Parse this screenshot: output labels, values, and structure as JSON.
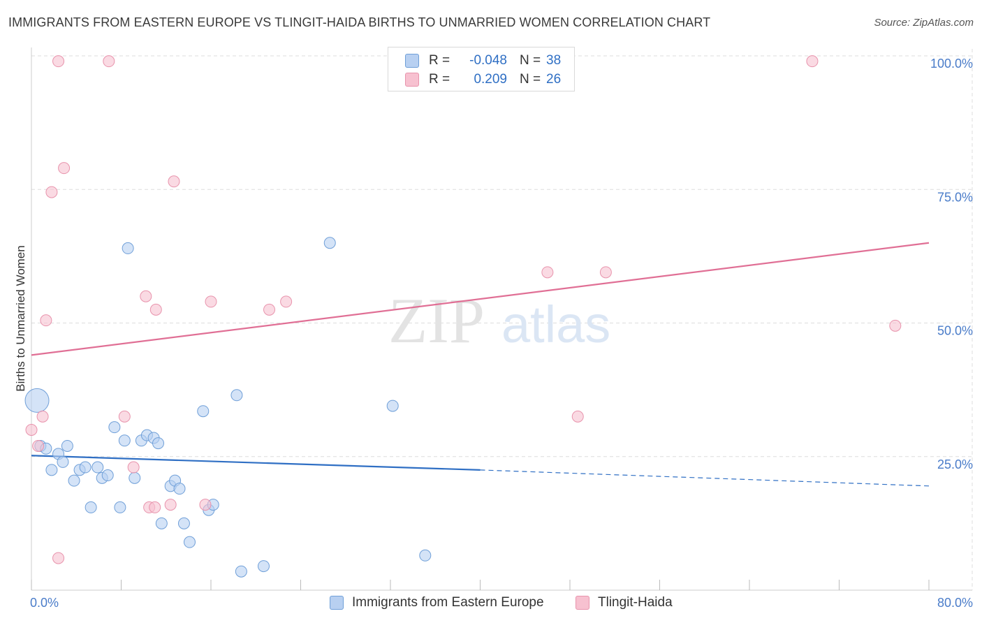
{
  "title": "IMMIGRANTS FROM EASTERN EUROPE VS TLINGIT-HAIDA BIRTHS TO UNMARRIED WOMEN CORRELATION CHART",
  "source": "Source: ZipAtlas.com",
  "watermark": {
    "zip": "ZIP",
    "atlas": "atlas"
  },
  "legend": {
    "rows": [
      {
        "r_label": "R =",
        "r_value": "-0.048",
        "n_label": "N =",
        "n_value": "38"
      },
      {
        "r_label": "R =",
        "r_value": "0.209",
        "n_label": "N =",
        "n_value": "26"
      }
    ]
  },
  "colors": {
    "blue_fill": "#b8d0f1",
    "blue_stroke": "#6f9fd8",
    "blue_line": "#2f6fc4",
    "pink_fill": "#f7c1d0",
    "pink_stroke": "#e893ac",
    "pink_line": "#e06f95",
    "grid": "#dddddd",
    "axis_text": "#4a7cc9"
  },
  "chart_data": {
    "type": "scatter",
    "title": "IMMIGRANTS FROM EASTERN EUROPE VS TLINGIT-HAIDA BIRTHS TO UNMARRIED WOMEN CORRELATION CHART",
    "xlabel": "",
    "ylabel": "Births to Unmarried Women",
    "xlim": [
      0,
      80
    ],
    "ylim": [
      0,
      102
    ],
    "x_tick_labels": [
      "0.0%",
      "80.0%"
    ],
    "y_ticks": [
      25,
      50,
      75,
      100
    ],
    "y_tick_labels": [
      "25.0%",
      "50.0%",
      "75.0%",
      "100.0%"
    ],
    "grid": true,
    "legend": [
      "Immigrants from Eastern Europe",
      "Tlingit-Haida"
    ],
    "series": [
      {
        "name": "Immigrants from Eastern Europe",
        "color": "blue",
        "points": [
          {
            "x": 0.5,
            "y": 35.5,
            "big": true
          },
          {
            "x": 0.8,
            "y": 27.0
          },
          {
            "x": 1.3,
            "y": 26.5
          },
          {
            "x": 1.8,
            "y": 22.5
          },
          {
            "x": 2.4,
            "y": 25.5
          },
          {
            "x": 2.8,
            "y": 24.0
          },
          {
            "x": 3.2,
            "y": 27.0
          },
          {
            "x": 3.8,
            "y": 20.5
          },
          {
            "x": 4.3,
            "y": 22.5
          },
          {
            "x": 4.8,
            "y": 23.0
          },
          {
            "x": 5.3,
            "y": 15.5
          },
          {
            "x": 5.9,
            "y": 23.0
          },
          {
            "x": 6.3,
            "y": 21.0
          },
          {
            "x": 6.8,
            "y": 21.5
          },
          {
            "x": 7.4,
            "y": 30.5
          },
          {
            "x": 7.9,
            "y": 15.5
          },
          {
            "x": 8.3,
            "y": 28.0
          },
          {
            "x": 8.6,
            "y": 64.0
          },
          {
            "x": 9.2,
            "y": 21.0
          },
          {
            "x": 9.8,
            "y": 28.0
          },
          {
            "x": 10.3,
            "y": 29.0
          },
          {
            "x": 10.9,
            "y": 28.5
          },
          {
            "x": 11.3,
            "y": 27.5
          },
          {
            "x": 11.6,
            "y": 12.5
          },
          {
            "x": 12.4,
            "y": 19.5
          },
          {
            "x": 12.8,
            "y": 20.5
          },
          {
            "x": 13.2,
            "y": 19.0
          },
          {
            "x": 13.6,
            "y": 12.5
          },
          {
            "x": 14.1,
            "y": 9.0
          },
          {
            "x": 15.3,
            "y": 33.5
          },
          {
            "x": 15.8,
            "y": 15.0
          },
          {
            "x": 16.2,
            "y": 16.0
          },
          {
            "x": 18.3,
            "y": 36.5
          },
          {
            "x": 18.7,
            "y": 3.5
          },
          {
            "x": 20.7,
            "y": 4.5
          },
          {
            "x": 26.6,
            "y": 65.0
          },
          {
            "x": 32.2,
            "y": 34.5
          },
          {
            "x": 35.1,
            "y": 6.5
          }
        ]
      },
      {
        "name": "Tlingit-Haida",
        "color": "pink",
        "points": [
          {
            "x": 0.0,
            "y": 30.0
          },
          {
            "x": 0.6,
            "y": 27.0
          },
          {
            "x": 1.0,
            "y": 32.5
          },
          {
            "x": 1.3,
            "y": 50.5
          },
          {
            "x": 1.8,
            "y": 74.5
          },
          {
            "x": 2.4,
            "y": 6.0
          },
          {
            "x": 2.4,
            "y": 99.0
          },
          {
            "x": 2.9,
            "y": 79.0
          },
          {
            "x": 6.9,
            "y": 99.0
          },
          {
            "x": 8.3,
            "y": 32.5
          },
          {
            "x": 9.1,
            "y": 23.0
          },
          {
            "x": 10.2,
            "y": 55.0
          },
          {
            "x": 10.5,
            "y": 15.5
          },
          {
            "x": 11.0,
            "y": 15.5
          },
          {
            "x": 11.1,
            "y": 52.5
          },
          {
            "x": 12.4,
            "y": 16.0
          },
          {
            "x": 12.7,
            "y": 76.5
          },
          {
            "x": 15.5,
            "y": 16.0
          },
          {
            "x": 16.0,
            "y": 54.0
          },
          {
            "x": 21.2,
            "y": 52.5
          },
          {
            "x": 22.7,
            "y": 54.0
          },
          {
            "x": 46.0,
            "y": 59.5
          },
          {
            "x": 48.7,
            "y": 32.5
          },
          {
            "x": 51.2,
            "y": 59.5
          },
          {
            "x": 69.6,
            "y": 99.0
          },
          {
            "x": 77.0,
            "y": 49.5
          }
        ]
      }
    ],
    "trend_lines": [
      {
        "name": "Immigrants from Eastern Europe",
        "x": [
          0,
          40
        ],
        "y": [
          25.2,
          22.5
        ],
        "dashed_to": {
          "x": 80,
          "y": 19.5
        }
      },
      {
        "name": "Tlingit-Haida",
        "x": [
          0,
          80
        ],
        "y": [
          44.0,
          65.0
        ]
      }
    ]
  }
}
